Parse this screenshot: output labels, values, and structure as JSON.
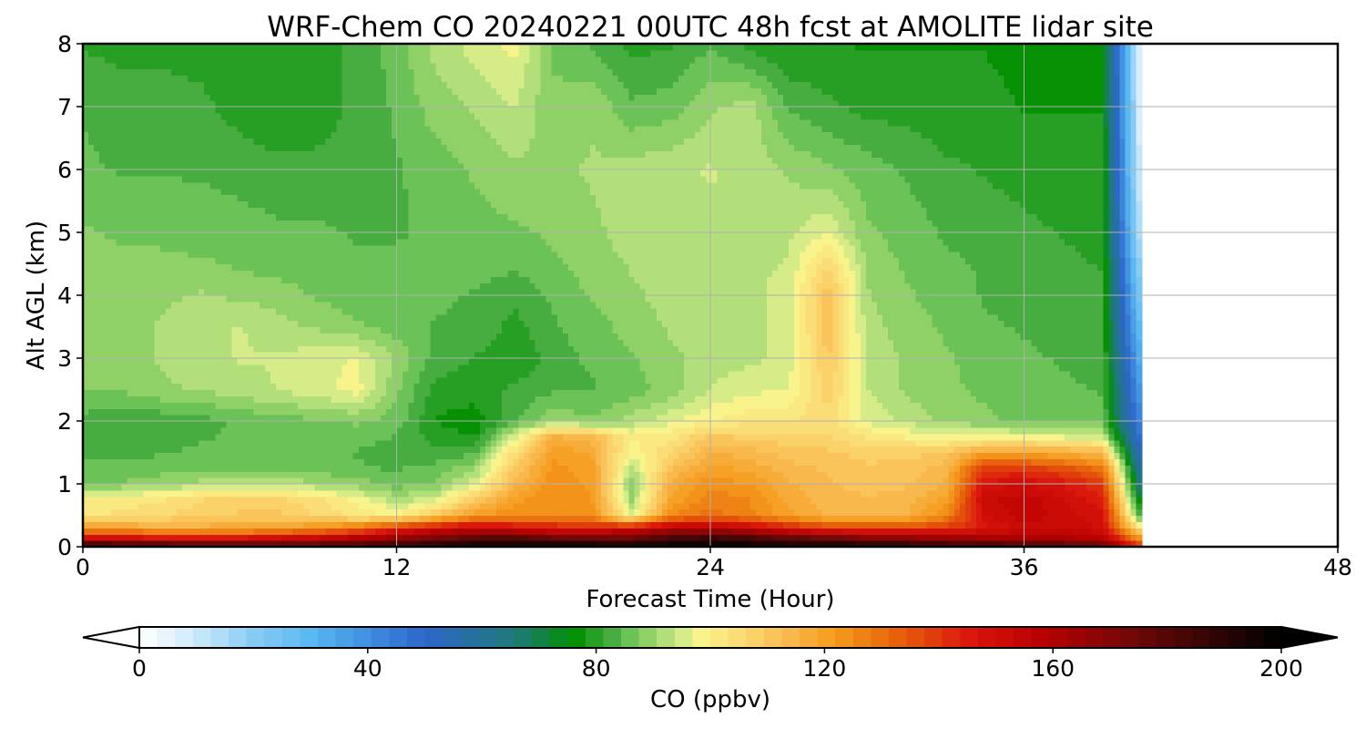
{
  "chart_data": {
    "type": "heatmap",
    "title": "WRF-Chem CO  20240221 00UTC 48h fcst at AMOLITE lidar site",
    "xlabel": "Forecast Time (Hour)",
    "ylabel": "Alt AGL (km)",
    "xlim": [
      0,
      48
    ],
    "ylim": [
      0,
      8
    ],
    "x_ticks": [
      0,
      12,
      24,
      36,
      48
    ],
    "y_ticks": [
      0,
      1,
      2,
      3,
      4,
      5,
      6,
      7,
      8
    ],
    "grid": true,
    "data_end_hour": 40.5,
    "x": [
      0,
      1.5,
      3,
      4.5,
      6,
      7.5,
      9,
      10.5,
      12,
      13.5,
      15,
      16.5,
      18,
      19.5,
      21,
      22.5,
      24,
      25.5,
      27,
      28.5,
      30,
      31.5,
      33,
      34.5,
      36,
      37.5,
      39,
      40.5
    ],
    "y": [
      0,
      0.15,
      0.3,
      0.5,
      0.75,
      1,
      1.25,
      1.5,
      1.75,
      2,
      2.5,
      3,
      3.5,
      4,
      4.5,
      5,
      6,
      7,
      8
    ],
    "values": [
      [
        195,
        192,
        190,
        188,
        186,
        186,
        186,
        188,
        190,
        194,
        198,
        200,
        200,
        200,
        198,
        200,
        202,
        200,
        198,
        198,
        195,
        194,
        190,
        188,
        185,
        183,
        178,
        140
      ],
      [
        150,
        148,
        146,
        145,
        146,
        150,
        153,
        157,
        165,
        172,
        178,
        180,
        175,
        172,
        175,
        182,
        185,
        182,
        176,
        174,
        168,
        166,
        164,
        162,
        160,
        160,
        158,
        120
      ],
      [
        120,
        120,
        118,
        118,
        118,
        120,
        124,
        130,
        142,
        150,
        154,
        150,
        146,
        145,
        150,
        158,
        160,
        154,
        146,
        140,
        138,
        138,
        140,
        145,
        152,
        152,
        150,
        100
      ],
      [
        103,
        104,
        106,
        108,
        110,
        110,
        106,
        102,
        100,
        110,
        122,
        124,
        125,
        124,
        96,
        125,
        130,
        126,
        120,
        115,
        114,
        115,
        125,
        150,
        155,
        152,
        148,
        80
      ],
      [
        100,
        101,
        103,
        106,
        108,
        107,
        104,
        99,
        92,
        96,
        110,
        121,
        125,
        122,
        90,
        120,
        127,
        125,
        118,
        114,
        113,
        114,
        120,
        152,
        156,
        150,
        145,
        70
      ],
      [
        88,
        88,
        90,
        92,
        94,
        93,
        91,
        89,
        86,
        88,
        96,
        114,
        124,
        121,
        88,
        117,
        124,
        122,
        116,
        113,
        111,
        112,
        116,
        148,
        150,
        146,
        140,
        60
      ],
      [
        85,
        85,
        86,
        86,
        86,
        86,
        86,
        85,
        84,
        86,
        90,
        110,
        123,
        120,
        92,
        112,
        120,
        118,
        114,
        112,
        110,
        111,
        114,
        140,
        140,
        136,
        130,
        55
      ],
      [
        84,
        84,
        84,
        85,
        85,
        85,
        85,
        84,
        83,
        82,
        84,
        104,
        121,
        118,
        98,
        106,
        116,
        114,
        111,
        110,
        108,
        108,
        110,
        120,
        120,
        117,
        113,
        50
      ],
      [
        83,
        83,
        84,
        84,
        85,
        85,
        86,
        86,
        84,
        80,
        78,
        96,
        116,
        114,
        100,
        102,
        110,
        109,
        107,
        107,
        103,
        100,
        98,
        98,
        98,
        97,
        95,
        45
      ],
      [
        83,
        82,
        82,
        83,
        85,
        86,
        87,
        88,
        86,
        78,
        76,
        84,
        90,
        88,
        92,
        96,
        100,
        102,
        103,
        105,
        96,
        93,
        90,
        88,
        87,
        87,
        86,
        40
      ],
      [
        88,
        88,
        90,
        91,
        92,
        94,
        96,
        98,
        88,
        80,
        80,
        82,
        84,
        84,
        86,
        89,
        94,
        96,
        97,
        108,
        94,
        90,
        88,
        87,
        86,
        85,
        84,
        35
      ],
      [
        89,
        89,
        91,
        93,
        94,
        94,
        96,
        97,
        90,
        83,
        81,
        78,
        83,
        85,
        87,
        90,
        92,
        93,
        95,
        110,
        93,
        90,
        88,
        86,
        85,
        84,
        83,
        30
      ],
      [
        89,
        89,
        91,
        93,
        94,
        92,
        90,
        88,
        86,
        84,
        84,
        80,
        84,
        86,
        89,
        91,
        92,
        93,
        95,
        112,
        92,
        89,
        87,
        85,
        84,
        83,
        82,
        25
      ],
      [
        89,
        89,
        90,
        91,
        90,
        89,
        87,
        86,
        85,
        85,
        84,
        82,
        85,
        88,
        90,
        92,
        93,
        93,
        95,
        112,
        91,
        88,
        86,
        84,
        83,
        82,
        82,
        20
      ],
      [
        89,
        88,
        88,
        88,
        87,
        86,
        86,
        85,
        85,
        86,
        86,
        85,
        87,
        89,
        91,
        92,
        93,
        93,
        94,
        106,
        90,
        87,
        85,
        84,
        83,
        82,
        81,
        15
      ],
      [
        88,
        87,
        87,
        86,
        86,
        85,
        85,
        84,
        84,
        85,
        86,
        87,
        88,
        90,
        92,
        93,
        93,
        93,
        93,
        97,
        88,
        86,
        84,
        83,
        82,
        81,
        80,
        10
      ],
      [
        85,
        84,
        84,
        84,
        83,
        82,
        82,
        82,
        84,
        86,
        88,
        90,
        90,
        91,
        92,
        93,
        94,
        93,
        90,
        88,
        86,
        84,
        82,
        81,
        80,
        80,
        79,
        5
      ],
      [
        84,
        83,
        83,
        82,
        80,
        79,
        80,
        82,
        85,
        89,
        91,
        94,
        88,
        90,
        85,
        86,
        90,
        92,
        84,
        82,
        80,
        80,
        79,
        79,
        78,
        78,
        78,
        3
      ],
      [
        81,
        80,
        80,
        80,
        79,
        79,
        80,
        82,
        86,
        92,
        95,
        98,
        87,
        84,
        80,
        81,
        84,
        80,
        78,
        78,
        78,
        78,
        78,
        78,
        77,
        77,
        77,
        2
      ]
    ],
    "colorbar": {
      "label": "CO  (ppbv)",
      "min": 0,
      "max": 200,
      "ticks": [
        0,
        40,
        80,
        120,
        160,
        200
      ],
      "extend": "both",
      "levels": 64,
      "colors": [
        "#ffffff",
        "#d8eefb",
        "#88ccf4",
        "#5ab8f2",
        "#3f8fe0",
        "#2d66c9",
        "#1f7a78",
        "#008f00",
        "#3fa83a",
        "#6cc256",
        "#9ad46c",
        "#c5e886",
        "#f8f58c",
        "#fcd873",
        "#f9b84c",
        "#f59a1c",
        "#e8660c",
        "#d9140c",
        "#b80000",
        "#7a0808",
        "#3a0505",
        "#000000"
      ],
      "color_stops": [
        0,
        8,
        20,
        30,
        40,
        50,
        66,
        76,
        82,
        86,
        90,
        94,
        98,
        106,
        114,
        122,
        132,
        146,
        158,
        172,
        186,
        200
      ]
    }
  }
}
